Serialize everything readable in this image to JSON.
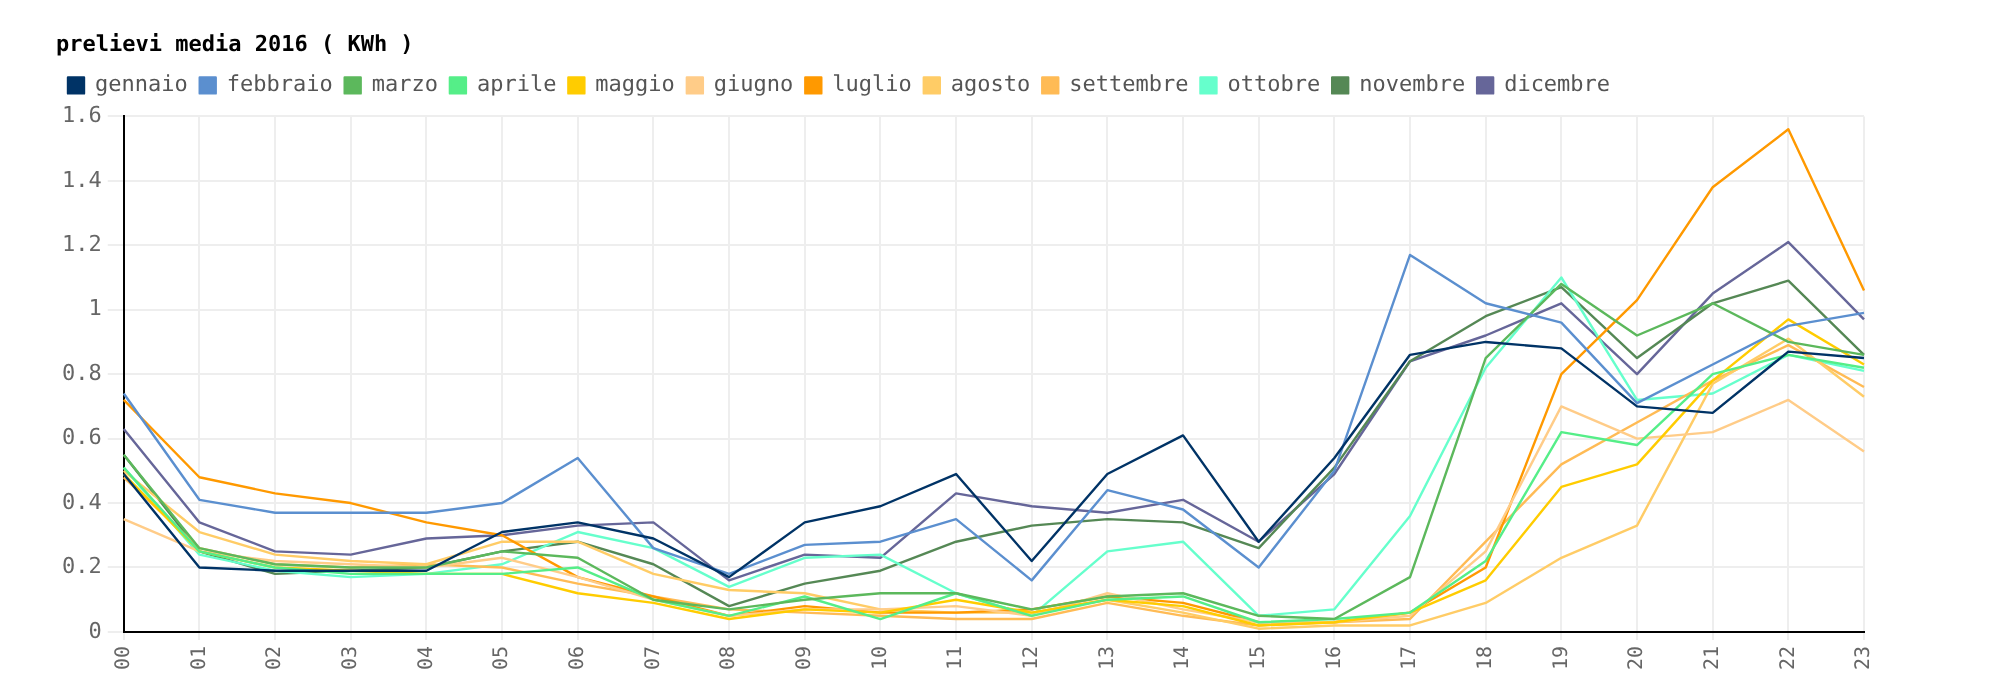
{
  "chart_data": {
    "type": "line",
    "title": "prelievi media 2016 ( KWh )",
    "categories": [
      "00",
      "01",
      "02",
      "03",
      "04",
      "05",
      "06",
      "07",
      "08",
      "09",
      "10",
      "11",
      "12",
      "13",
      "14",
      "15",
      "16",
      "17",
      "18",
      "19",
      "20",
      "21",
      "22",
      "23"
    ],
    "series": [
      {
        "name": "gennaio",
        "color": "#003366",
        "values": [
          0.49,
          0.2,
          0.19,
          0.19,
          0.19,
          0.31,
          0.34,
          0.29,
          0.17,
          0.34,
          0.39,
          0.49,
          0.22,
          0.49,
          0.61,
          0.28,
          0.54,
          0.86,
          0.9,
          0.88,
          0.7,
          0.68,
          0.87,
          0.85
        ]
      },
      {
        "name": "febbraio",
        "color": "#5b8fcf",
        "values": [
          0.74,
          0.41,
          0.37,
          0.37,
          0.37,
          0.4,
          0.54,
          0.26,
          0.18,
          0.27,
          0.28,
          0.35,
          0.16,
          0.44,
          0.38,
          0.2,
          0.5,
          1.17,
          1.02,
          0.96,
          0.71,
          0.83,
          0.95,
          0.99
        ]
      },
      {
        "name": "marzo",
        "color": "#5cb85c",
        "values": [
          0.55,
          0.26,
          0.21,
          0.2,
          0.2,
          0.25,
          0.23,
          0.1,
          0.07,
          0.1,
          0.12,
          0.12,
          0.07,
          0.11,
          0.12,
          0.05,
          0.04,
          0.17,
          0.85,
          1.08,
          0.92,
          1.02,
          0.9,
          0.86
        ]
      },
      {
        "name": "aprile",
        "color": "#55ee88",
        "values": [
          0.51,
          0.25,
          0.2,
          0.18,
          0.18,
          0.18,
          0.2,
          0.1,
          0.05,
          0.11,
          0.04,
          0.12,
          0.05,
          0.1,
          0.11,
          0.03,
          0.04,
          0.06,
          0.22,
          0.62,
          0.58,
          0.8,
          0.86,
          0.82
        ]
      },
      {
        "name": "maggio",
        "color": "#ffcc00",
        "values": [
          0.49,
          0.25,
          0.2,
          0.19,
          0.18,
          0.18,
          0.12,
          0.09,
          0.04,
          0.07,
          0.06,
          0.1,
          0.06,
          0.1,
          0.08,
          0.02,
          0.03,
          0.06,
          0.16,
          0.45,
          0.52,
          0.78,
          0.97,
          0.83
        ]
      },
      {
        "name": "giugno",
        "color": "#ffcc88",
        "values": [
          0.35,
          0.25,
          0.22,
          0.21,
          0.2,
          0.23,
          0.17,
          0.1,
          0.05,
          0.07,
          0.07,
          0.08,
          0.05,
          0.12,
          0.07,
          0.03,
          0.03,
          0.05,
          0.25,
          0.7,
          0.6,
          0.62,
          0.72,
          0.56
        ]
      },
      {
        "name": "luglio",
        "color": "#ff9900",
        "values": [
          0.72,
          0.48,
          0.43,
          0.4,
          0.34,
          0.3,
          0.17,
          0.11,
          0.05,
          0.08,
          0.06,
          0.06,
          0.07,
          0.11,
          0.09,
          0.03,
          0.03,
          0.06,
          0.2,
          0.8,
          1.03,
          1.38,
          1.56,
          1.06
        ]
      },
      {
        "name": "agosto",
        "color": "#ffcc66",
        "values": [
          0.5,
          0.31,
          0.24,
          0.22,
          0.21,
          0.28,
          0.28,
          0.18,
          0.13,
          0.12,
          0.07,
          0.06,
          0.06,
          0.1,
          0.06,
          0.01,
          0.02,
          0.02,
          0.09,
          0.23,
          0.33,
          0.77,
          0.91,
          0.73
        ]
      },
      {
        "name": "settembre",
        "color": "#ffbb55",
        "values": [
          0.48,
          0.26,
          0.21,
          0.2,
          0.21,
          0.2,
          0.15,
          0.11,
          0.07,
          0.06,
          0.05,
          0.04,
          0.04,
          0.09,
          0.05,
          0.02,
          0.03,
          0.04,
          0.28,
          0.52,
          0.65,
          0.78,
          0.89,
          0.76
        ]
      },
      {
        "name": "ottobre",
        "color": "#66ffcc",
        "values": [
          0.51,
          0.24,
          0.19,
          0.17,
          0.18,
          0.21,
          0.31,
          0.26,
          0.14,
          0.23,
          0.24,
          0.12,
          0.05,
          0.25,
          0.28,
          0.05,
          0.07,
          0.36,
          0.82,
          1.1,
          0.72,
          0.74,
          0.86,
          0.81
        ]
      },
      {
        "name": "novembre",
        "color": "#558855",
        "values": [
          0.55,
          0.25,
          0.18,
          0.19,
          0.2,
          0.25,
          0.28,
          0.21,
          0.08,
          0.15,
          0.19,
          0.28,
          0.33,
          0.35,
          0.34,
          0.26,
          0.51,
          0.84,
          0.98,
          1.07,
          0.85,
          1.02,
          1.09,
          0.86
        ]
      },
      {
        "name": "dicembre",
        "color": "#666699",
        "values": [
          0.63,
          0.34,
          0.25,
          0.24,
          0.29,
          0.3,
          0.33,
          0.34,
          0.16,
          0.24,
          0.23,
          0.43,
          0.39,
          0.37,
          0.41,
          0.28,
          0.49,
          0.84,
          0.92,
          1.02,
          0.8,
          1.05,
          1.21,
          0.97
        ]
      }
    ],
    "ylim": [
      0,
      1.6
    ],
    "yticks": [
      0,
      0.2,
      0.4,
      0.6,
      0.8,
      {
        "value": 1,
        "label": "1"
      },
      1.2,
      1.4,
      1.6
    ],
    "grid": true,
    "legend": "top",
    "marker": "none",
    "line_style": "solid"
  }
}
